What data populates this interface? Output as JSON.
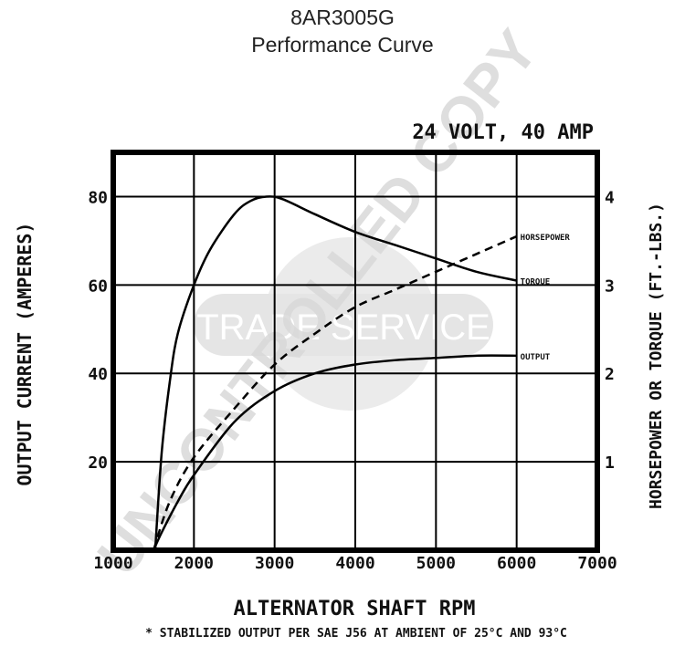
{
  "title": "8AR3005G",
  "subtitle": "Performance Curve",
  "watermark": {
    "diagonal_text": "UNCONTROLLED COPY",
    "center_text": "TRADE SERVICE"
  },
  "chart_data": {
    "type": "line",
    "rating_label": "24 VOLT, 40 AMP",
    "xlabel": "ALTERNATOR SHAFT RPM",
    "ylabel_left": "OUTPUT CURRENT (AMPERES)",
    "ylabel_right": "HORSEPOWER OR TORQUE (FT.-LBS.)",
    "footnote": "* STABILIZED OUTPUT PER SAE J56 AT AMBIENT OF 25°C AND 93°C",
    "xlim": [
      1000,
      7000
    ],
    "ylim_left": [
      0,
      90
    ],
    "ylim_right": [
      0,
      4.5
    ],
    "x_ticks": [
      "1000",
      "2000",
      "3000",
      "4000",
      "5000",
      "6000",
      "7000"
    ],
    "x_tick_values": [
      1000,
      2000,
      3000,
      4000,
      5000,
      6000,
      7000
    ],
    "y_left_ticks": [
      "20",
      "40",
      "60",
      "80"
    ],
    "y_left_tick_values": [
      20,
      40,
      60,
      80
    ],
    "y_right_ticks": [
      "1",
      "2",
      "3",
      "4"
    ],
    "y_right_tick_values": [
      1,
      2,
      3,
      4
    ],
    "grid": true,
    "series": [
      {
        "name": "HORSEPOWER",
        "axis": "right",
        "style": "dashed",
        "x": [
          1500,
          1700,
          2000,
          2500,
          3000,
          3500,
          4000,
          4500,
          5000,
          5500,
          6000
        ],
        "y": [
          0.0,
          0.55,
          1.05,
          1.6,
          2.1,
          2.45,
          2.75,
          2.95,
          3.15,
          3.35,
          3.55
        ]
      },
      {
        "name": "TORQUE",
        "axis": "right",
        "style": "solid",
        "x": [
          1520,
          1600,
          1700,
          1800,
          2000,
          2200,
          2500,
          2700,
          2900,
          3100,
          3500,
          4000,
          4500,
          5000,
          5500,
          6000
        ],
        "y": [
          0.0,
          1.1,
          1.9,
          2.45,
          3.0,
          3.4,
          3.8,
          3.95,
          4.0,
          3.97,
          3.8,
          3.6,
          3.45,
          3.3,
          3.15,
          3.05
        ]
      },
      {
        "name": "OUTPUT",
        "axis": "left",
        "style": "solid",
        "x": [
          1500,
          1600,
          1800,
          2000,
          2500,
          3000,
          3500,
          4000,
          4500,
          5000,
          5500,
          6000
        ],
        "y": [
          0,
          4,
          11,
          17,
          29,
          36,
          40,
          42,
          43,
          43.5,
          44,
          44
        ]
      }
    ]
  }
}
